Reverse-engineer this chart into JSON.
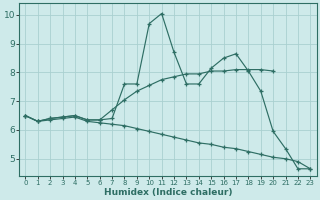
{
  "xlabel": "Humidex (Indice chaleur)",
  "xlim": [
    -0.5,
    23.5
  ],
  "ylim": [
    4.4,
    10.4
  ],
  "xticks": [
    0,
    1,
    2,
    3,
    4,
    5,
    6,
    7,
    8,
    9,
    10,
    11,
    12,
    13,
    14,
    15,
    16,
    17,
    18,
    19,
    20,
    21,
    22,
    23
  ],
  "yticks": [
    5,
    6,
    7,
    8,
    9,
    10
  ],
  "background_color": "#ceeaea",
  "line_color": "#2e6e64",
  "grid_color": "#aad0d0",
  "line1_x": [
    0,
    1,
    2,
    3,
    4,
    5,
    6,
    7,
    8,
    9,
    10,
    11,
    12,
    13,
    14,
    15,
    16,
    17,
    18,
    19,
    20,
    21,
    22,
    23
  ],
  "line1_y": [
    6.5,
    6.3,
    6.4,
    6.45,
    6.5,
    6.35,
    6.35,
    6.4,
    7.6,
    7.6,
    9.7,
    10.05,
    8.7,
    7.6,
    7.6,
    8.15,
    8.5,
    8.65,
    8.05,
    7.35,
    5.95,
    5.35,
    4.65,
    4.65
  ],
  "line2_x": [
    0,
    1,
    2,
    3,
    4,
    5,
    6,
    7,
    8,
    9,
    10,
    11,
    12,
    13,
    14,
    15,
    16,
    17,
    18,
    19,
    20
  ],
  "line2_y": [
    6.5,
    6.3,
    6.4,
    6.45,
    6.5,
    6.35,
    6.35,
    6.7,
    7.05,
    7.35,
    7.55,
    7.75,
    7.85,
    7.95,
    7.95,
    8.05,
    8.05,
    8.1,
    8.1,
    8.1,
    8.05
  ],
  "line3_x": [
    0,
    1,
    2,
    3,
    4,
    5,
    6,
    7,
    8,
    9,
    10,
    11,
    12,
    13,
    14,
    15,
    16,
    17,
    18,
    19,
    20,
    21,
    22,
    23
  ],
  "line3_y": [
    6.5,
    6.3,
    6.35,
    6.4,
    6.45,
    6.3,
    6.25,
    6.2,
    6.15,
    6.05,
    5.95,
    5.85,
    5.75,
    5.65,
    5.55,
    5.5,
    5.4,
    5.35,
    5.25,
    5.15,
    5.05,
    5.0,
    4.9,
    4.65
  ]
}
